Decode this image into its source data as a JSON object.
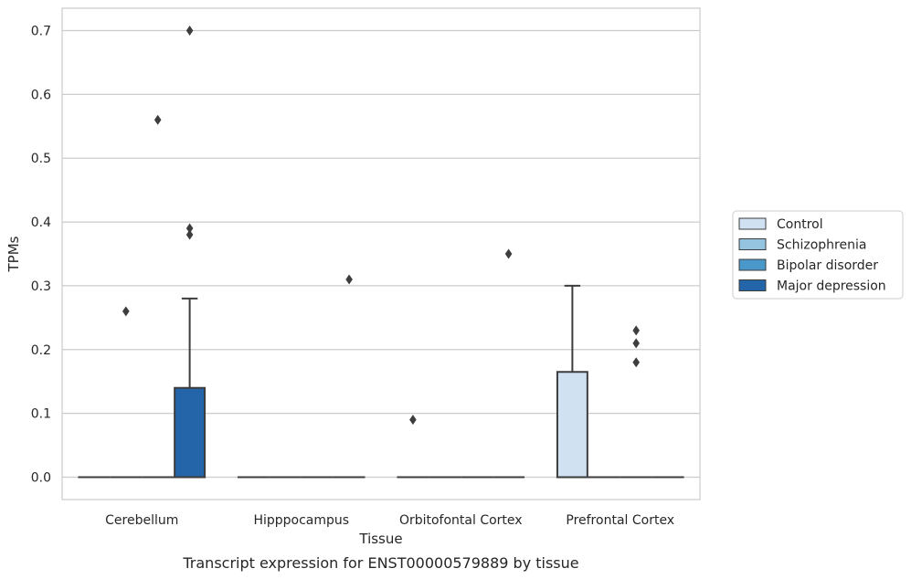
{
  "chart_data": {
    "type": "box",
    "xlabel": "Tissue",
    "ylabel": "TPMs",
    "caption": "Transcript expression for ENST00000579889 by tissue",
    "ylim": [
      -0.035,
      0.735
    ],
    "yticks": [
      "0.0",
      "0.1",
      "0.2",
      "0.3",
      "0.4",
      "0.5",
      "0.6",
      "0.7"
    ],
    "ytick_values": [
      0,
      0.1,
      0.2,
      0.3,
      0.4,
      0.5,
      0.6,
      0.7
    ],
    "categories": [
      "Cerebellum",
      "Hipppocampus",
      "Orbitofontal Cortex",
      "Prefrontal Cortex"
    ],
    "grid": "horizontal",
    "legend_position": "right",
    "series": [
      {
        "name": "Control",
        "color": "#d0e1f2",
        "boxes": [
          {
            "q1": 0,
            "median": 0,
            "q3": 0,
            "whisker_low": 0,
            "whisker_high": 0,
            "outliers": []
          },
          {
            "q1": 0,
            "median": 0,
            "q3": 0,
            "whisker_low": 0,
            "whisker_high": 0,
            "outliers": []
          },
          {
            "q1": 0,
            "median": 0,
            "q3": 0,
            "whisker_low": 0,
            "whisker_high": 0,
            "outliers": [
              0.09
            ]
          },
          {
            "q1": 0,
            "median": 0,
            "q3": 0.165,
            "whisker_low": 0,
            "whisker_high": 0.3,
            "outliers": []
          }
        ]
      },
      {
        "name": "Schizophrenia",
        "color": "#94c4df",
        "boxes": [
          {
            "q1": 0,
            "median": 0,
            "q3": 0,
            "whisker_low": 0,
            "whisker_high": 0,
            "outliers": [
              0.26
            ]
          },
          {
            "q1": 0,
            "median": 0,
            "q3": 0,
            "whisker_low": 0,
            "whisker_high": 0,
            "outliers": []
          },
          {
            "q1": 0,
            "median": 0,
            "q3": 0,
            "whisker_low": 0,
            "whisker_high": 0,
            "outliers": []
          },
          {
            "q1": 0,
            "median": 0,
            "q3": 0,
            "whisker_low": 0,
            "whisker_high": 0,
            "outliers": []
          }
        ]
      },
      {
        "name": "Bipolar disorder",
        "color": "#4a98c9",
        "boxes": [
          {
            "q1": 0,
            "median": 0,
            "q3": 0,
            "whisker_low": 0,
            "whisker_high": 0,
            "outliers": [
              0.56
            ]
          },
          {
            "q1": 0,
            "median": 0,
            "q3": 0,
            "whisker_low": 0,
            "whisker_high": 0,
            "outliers": []
          },
          {
            "q1": 0,
            "median": 0,
            "q3": 0,
            "whisker_low": 0,
            "whisker_high": 0,
            "outliers": []
          },
          {
            "q1": 0,
            "median": 0,
            "q3": 0,
            "whisker_low": 0,
            "whisker_high": 0,
            "outliers": [
              0.18,
              0.21,
              0.23
            ]
          }
        ]
      },
      {
        "name": "Major depression",
        "color": "#2464a8",
        "boxes": [
          {
            "q1": 0,
            "median": 0,
            "q3": 0.14,
            "whisker_low": 0,
            "whisker_high": 0.28,
            "outliers": [
              0.38,
              0.39,
              0.7
            ]
          },
          {
            "q1": 0,
            "median": 0,
            "q3": 0,
            "whisker_low": 0,
            "whisker_high": 0,
            "outliers": [
              0.31
            ]
          },
          {
            "q1": 0,
            "median": 0,
            "q3": 0,
            "whisker_low": 0,
            "whisker_high": 0,
            "outliers": [
              0.35
            ]
          },
          {
            "q1": 0,
            "median": 0,
            "q3": 0,
            "whisker_low": 0,
            "whisker_high": 0,
            "outliers": []
          }
        ]
      }
    ]
  }
}
